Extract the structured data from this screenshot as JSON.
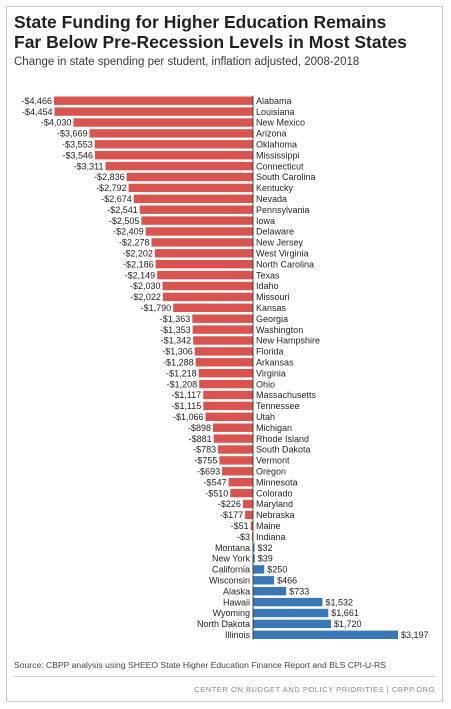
{
  "header": {
    "title_line1": "State Funding for Higher Education Remains",
    "title_line2": "Far Below Pre-Recession Levels in Most States",
    "subtitle": "Change in state spending per student, inflation adjusted, 2008-2018"
  },
  "footer": {
    "source": "Source: CBPP analysis using SHEEO State Higher Education Finance Report and BLS CPI-U-RS",
    "credit": "CENTER ON BUDGET AND POLICY PRIORITIES | CBPP.ORG"
  },
  "colors": {
    "negative": "#d9534f",
    "positive": "#3a78b5",
    "text": "#231f20"
  },
  "chart_data": {
    "type": "bar",
    "orientation": "horizontal",
    "title": "State Funding for Higher Education Remains Far Below Pre-Recession Levels in Most States",
    "subtitle": "Change in state spending per student, inflation adjusted, 2008-2018",
    "categories": [
      "Alabama",
      "Louisiana",
      "New Mexico",
      "Arizona",
      "Oklahoma",
      "Mississippi",
      "Connecticut",
      "South Carolina",
      "Kentucky",
      "Nevada",
      "Pennsylvania",
      "Iowa",
      "Delaware",
      "New Jersey",
      "West Virginia",
      "North Carolina",
      "Texas",
      "Idaho",
      "Missouri",
      "Kansas",
      "Georgia",
      "Washington",
      "New Hampshire",
      "Florida",
      "Arkansas",
      "Virginia",
      "Ohio",
      "Massachusetts",
      "Tennessee",
      "Utah",
      "Michigan",
      "Rhode Island",
      "South Dakota",
      "Vermont",
      "Oregon",
      "Minnesota",
      "Colorado",
      "Maryland",
      "Nebraska",
      "Maine",
      "Indiana",
      "Montana",
      "New York",
      "California",
      "Wisconsin",
      "Alaska",
      "Hawaii",
      "Wyoming",
      "North Dakota",
      "Illinois"
    ],
    "values": [
      -4466,
      -4454,
      -4030,
      -3669,
      -3553,
      -3546,
      -3311,
      -2836,
      -2792,
      -2674,
      -2541,
      -2505,
      -2409,
      -2278,
      -2202,
      -2186,
      -2149,
      -2030,
      -2022,
      -1790,
      -1363,
      -1353,
      -1342,
      -1306,
      -1288,
      -1218,
      -1208,
      -1117,
      -1115,
      -1066,
      -898,
      -881,
      -783,
      -755,
      -693,
      -547,
      -510,
      -226,
      -177,
      -51,
      -3,
      32,
      39,
      250,
      466,
      733,
      1532,
      1661,
      1720,
      3197
    ],
    "value_labels": [
      "-$4,466",
      "-$4,454",
      "-$4,030",
      "-$3,669",
      "-$3,553",
      "-$3,546",
      "-$3,311",
      "-$2,836",
      "-$2,792",
      "-$2,674",
      "-$2,541",
      "-$2,505",
      "-$2,409",
      "-$2,278",
      "-$2,202",
      "-$2,186",
      "-$2,149",
      "-$2,030",
      "-$2,022",
      "-$1,790",
      "-$1,363",
      "-$1,353",
      "-$1,342",
      "-$1,306",
      "-$1,288",
      "-$1,218",
      "-$1,208",
      "-$1,117",
      "-$1,115",
      "-$1,066",
      "-$898",
      "-$881",
      "-$783",
      "-$755",
      "-$693",
      "-$547",
      "-$510",
      "-$226",
      "-$177",
      "-$51",
      "-$3",
      "$32",
      "$39",
      "$250",
      "$466",
      "$733",
      "$1,532",
      "$1,661",
      "$1,720",
      "$3,197"
    ],
    "xlim": [
      -4466,
      3197
    ],
    "legend": "none",
    "grid": false
  }
}
